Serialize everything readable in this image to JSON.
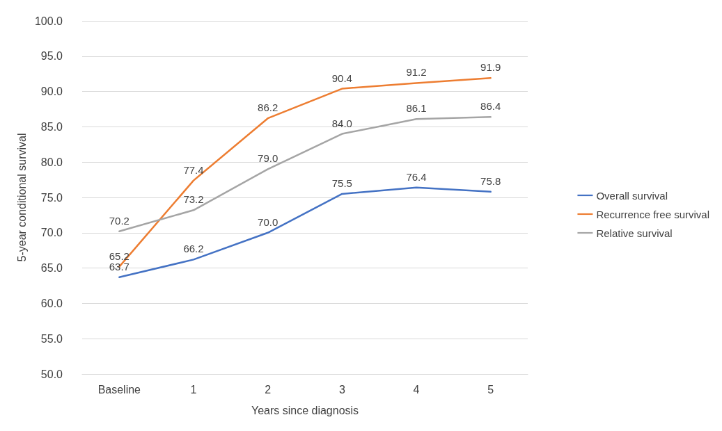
{
  "chart_data": {
    "type": "line",
    "xlabel": "Years since diagnosis",
    "ylabel": "5-year conditional survival",
    "categories": [
      "Baseline",
      "1",
      "2",
      "3",
      "4",
      "5"
    ],
    "series": [
      {
        "name": "Overall survival",
        "color": "#4472c4",
        "values": [
          63.7,
          66.2,
          70.0,
          75.5,
          76.4,
          75.8
        ],
        "value_labels": [
          "63.7",
          "66.2",
          "70.0",
          "75.5",
          "76.4",
          "75.8"
        ]
      },
      {
        "name": "Recurrence free survival",
        "color": "#ed7d31",
        "values": [
          65.2,
          77.4,
          86.2,
          90.4,
          91.2,
          91.9
        ],
        "value_labels": [
          "65.2",
          "77.4",
          "86.2",
          "90.4",
          "91.2",
          "91.9"
        ]
      },
      {
        "name": "Relative survival",
        "color": "#a5a5a5",
        "values": [
          70.2,
          73.2,
          79.0,
          84.0,
          86.1,
          86.4
        ],
        "value_labels": [
          "70.2",
          "73.2",
          "79.0",
          "84.0",
          "86.1",
          "86.4"
        ]
      }
    ],
    "ylim": [
      50,
      100
    ],
    "yticks": [
      {
        "value": 50,
        "label": "50.0"
      },
      {
        "value": 55,
        "label": "55.0"
      },
      {
        "value": 60,
        "label": "60.0"
      },
      {
        "value": 65,
        "label": "65.0"
      },
      {
        "value": 70,
        "label": "70.0"
      },
      {
        "value": 75,
        "label": "75.0"
      },
      {
        "value": 80,
        "label": "80.0"
      },
      {
        "value": 85,
        "label": "85.0"
      },
      {
        "value": 90,
        "label": "90.0"
      },
      {
        "value": 95,
        "label": "95.0"
      },
      {
        "value": 100,
        "label": "100.0"
      }
    ],
    "grid": "y",
    "legend": "right",
    "marker": "none",
    "line_style": "solid"
  }
}
